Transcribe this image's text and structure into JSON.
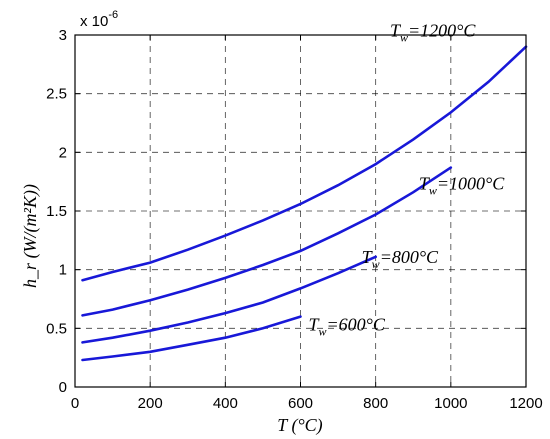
{
  "chart_data": {
    "type": "line",
    "title": "",
    "xlabel": "T (°C)",
    "ylabel": "h_r (W/(m²K))",
    "xlim": [
      0,
      1200
    ],
    "ylim": [
      0,
      3
    ],
    "y_multiplier_label": "x 10",
    "y_multiplier_exponent": "-6",
    "x_ticks": [
      "0",
      "200",
      "400",
      "600",
      "800",
      "1000",
      "1200"
    ],
    "y_ticks": [
      "0",
      "0.5",
      "1",
      "1.5",
      "2",
      "2.5",
      "3"
    ],
    "grid": true,
    "series": [
      {
        "name": "Tw=1200°C",
        "label_main": "T",
        "label_sub": "w",
        "label_rest": "=1200°C",
        "color": "#1818d8",
        "x": [
          20,
          100,
          200,
          300,
          400,
          500,
          600,
          700,
          800,
          900,
          1000,
          1100,
          1200
        ],
        "y": [
          0.91,
          0.98,
          1.06,
          1.17,
          1.29,
          1.42,
          1.56,
          1.72,
          1.9,
          2.11,
          2.34,
          2.6,
          2.9
        ]
      },
      {
        "name": "Tw=1000°C",
        "label_main": "T",
        "label_sub": "w",
        "label_rest": "=1000°C",
        "color": "#1818d8",
        "x": [
          20,
          100,
          200,
          300,
          400,
          500,
          600,
          700,
          800,
          900,
          1000
        ],
        "y": [
          0.61,
          0.66,
          0.74,
          0.83,
          0.93,
          1.04,
          1.16,
          1.31,
          1.47,
          1.66,
          1.87
        ]
      },
      {
        "name": "Tw=800°C",
        "label_main": "T",
        "label_sub": "w",
        "label_rest": "=800°C",
        "color": "#1818d8",
        "x": [
          20,
          100,
          200,
          300,
          400,
          500,
          600,
          700,
          800
        ],
        "y": [
          0.38,
          0.42,
          0.48,
          0.55,
          0.63,
          0.72,
          0.84,
          0.97,
          1.11
        ]
      },
      {
        "name": "Tw=600°C",
        "label_main": "T",
        "label_sub": "w",
        "label_rest": "=600°C",
        "color": "#1818d8",
        "x": [
          20,
          100,
          200,
          300,
          400,
          500,
          600
        ],
        "y": [
          0.23,
          0.26,
          0.3,
          0.36,
          0.42,
          0.5,
          0.6
        ]
      }
    ]
  }
}
